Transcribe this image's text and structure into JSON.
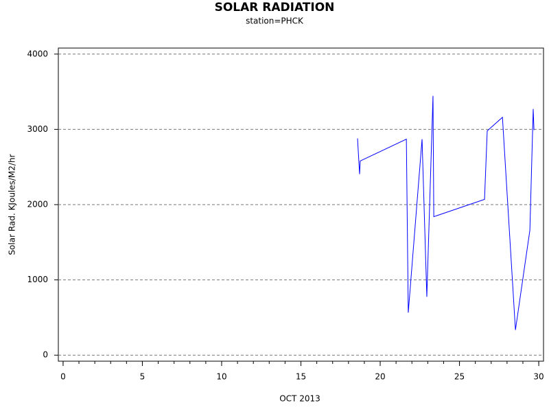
{
  "chart_data": {
    "type": "line",
    "title": "SOLAR RADIATION",
    "subtitle": "station=PHCK",
    "x_label": "OCT 2013",
    "y_label": "Solar Rad. KJoules/M2/hr",
    "x": [
      18.57,
      18.7,
      18.74,
      21.65,
      21.77,
      22.64,
      22.94,
      23.33,
      23.38,
      26.58,
      26.75,
      27.71,
      28.53,
      29.44,
      29.65,
      29.7
    ],
    "series": [
      {
        "color": "#0000ff",
        "values": [
          2880,
          2405,
          2580,
          2870,
          565,
          2870,
          775,
          3445,
          1840,
          2070,
          2980,
          3160,
          335,
          1660,
          3270,
          2990
        ]
      }
    ],
    "xlim": [
      -0.3,
      30.3
    ],
    "ylim": [
      -80,
      4080
    ],
    "xticks": [
      0,
      5,
      10,
      15,
      20,
      25,
      30
    ],
    "xminorticks": [
      0,
      1,
      2,
      3,
      4,
      5,
      6,
      7,
      8,
      9,
      10,
      11,
      12,
      13,
      14,
      15,
      16,
      17,
      18,
      19,
      20,
      21,
      22,
      23,
      24,
      25,
      26,
      27,
      28,
      29,
      30
    ],
    "yticks": [
      0,
      1000,
      2000,
      3000,
      4000
    ],
    "grid": true
  }
}
